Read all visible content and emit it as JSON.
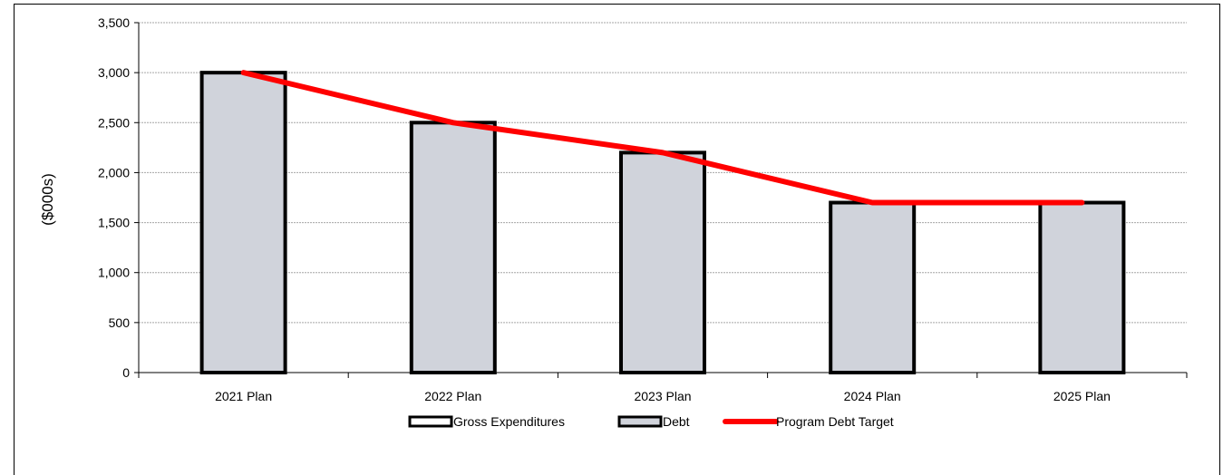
{
  "chart_data": {
    "type": "bar",
    "title": "",
    "xlabel": "",
    "ylabel": "($000s)",
    "ylim": [
      0,
      3500
    ],
    "ytick_step": 500,
    "ytick_labels": [
      "0",
      "500",
      "1,000",
      "1,500",
      "2,000",
      "2,500",
      "3,000",
      "3,500"
    ],
    "grid": true,
    "legend_position": "bottom",
    "categories": [
      "2021 Plan",
      "2022 Plan",
      "2023 Plan",
      "2024 Plan",
      "2025 Plan"
    ],
    "series": [
      {
        "name": "Gross Expenditures",
        "kind": "bar",
        "values": [
          3000,
          2500,
          2200,
          1700,
          1700
        ],
        "color": "#ffffff",
        "stroke": "#000000"
      },
      {
        "name": "Debt",
        "kind": "bar",
        "values": [
          3000,
          2500,
          2200,
          1700,
          1700
        ],
        "color": "#d0d3db",
        "stroke": "#000000"
      },
      {
        "name": "Program Debt Target",
        "kind": "line",
        "values": [
          3000,
          2500,
          2200,
          1700,
          1700
        ],
        "color": "#ff0000"
      }
    ]
  }
}
